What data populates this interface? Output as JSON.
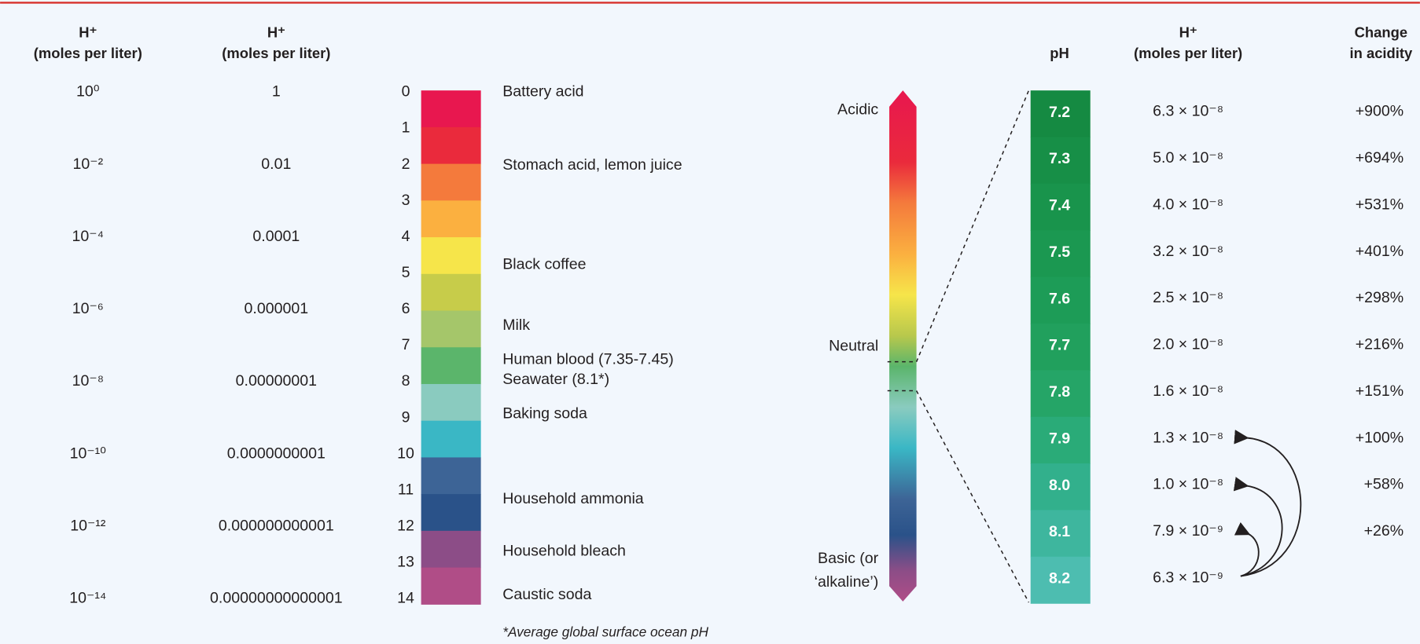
{
  "left_table": {
    "headers": [
      [
        "H⁺",
        "(moles per liter)"
      ],
      [
        "H⁺",
        "(moles per liter)"
      ]
    ],
    "rows": [
      [
        "10⁰",
        "1"
      ],
      [
        "10⁻²",
        "0.01"
      ],
      [
        "10⁻⁴",
        "0.0001"
      ],
      [
        "10⁻⁶",
        "0.000001"
      ],
      [
        "10⁻⁸",
        "0.00000001"
      ],
      [
        "10⁻¹⁰",
        "0.0000000001"
      ],
      [
        "10⁻¹²",
        "0.000000000001"
      ],
      [
        "10⁻¹⁴",
        "0.00000000000001"
      ]
    ]
  },
  "scale": {
    "levels": [
      "0",
      "1",
      "2",
      "3",
      "4",
      "5",
      "6",
      "7",
      "8",
      "9",
      "10",
      "11",
      "12",
      "13",
      "14"
    ],
    "substances": [
      "Battery acid",
      "Stomach acid, lemon juice",
      "Black coffee",
      "Milk",
      "Human blood (7.35-7.45)",
      "Seawater (8.1*)",
      "Baking soda",
      "Household ammonia",
      "Household bleach",
      "Caustic soda"
    ]
  },
  "arrow": {
    "acidic": "Acidic",
    "neutral": "Neutral",
    "basic": [
      "Basic (or",
      "‘alkaline’)"
    ]
  },
  "right_table": {
    "headers": {
      "ph": "pH",
      "h": [
        "H⁺",
        "(moles per liter)"
      ],
      "change": [
        "Change",
        "in acidity"
      ]
    },
    "rows": [
      [
        "7.2",
        "6.3 × 10⁻⁸",
        "+900%"
      ],
      [
        "7.3",
        "5.0 × 10⁻⁸",
        "+694%"
      ],
      [
        "7.4",
        "4.0 × 10⁻⁸",
        "+531%"
      ],
      [
        "7.5",
        "3.2 × 10⁻⁸",
        "+401%"
      ],
      [
        "7.6",
        "2.5 × 10⁻⁸",
        "+298%"
      ],
      [
        "7.7",
        "2.0 × 10⁻⁸",
        "+216%"
      ],
      [
        "7.8",
        "1.6 × 10⁻⁸",
        "+151%"
      ],
      [
        "7.9",
        "1.3 × 10⁻⁸",
        "+100%"
      ],
      [
        "8.0",
        "1.0 × 10⁻⁸",
        "+58%"
      ],
      [
        "8.1",
        "7.9 × 10⁻⁹",
        "+26%"
      ],
      [
        "8.2",
        "6.3 × 10⁻⁹"
      ]
    ]
  },
  "footnote": "*Average global surface ocean pH"
}
